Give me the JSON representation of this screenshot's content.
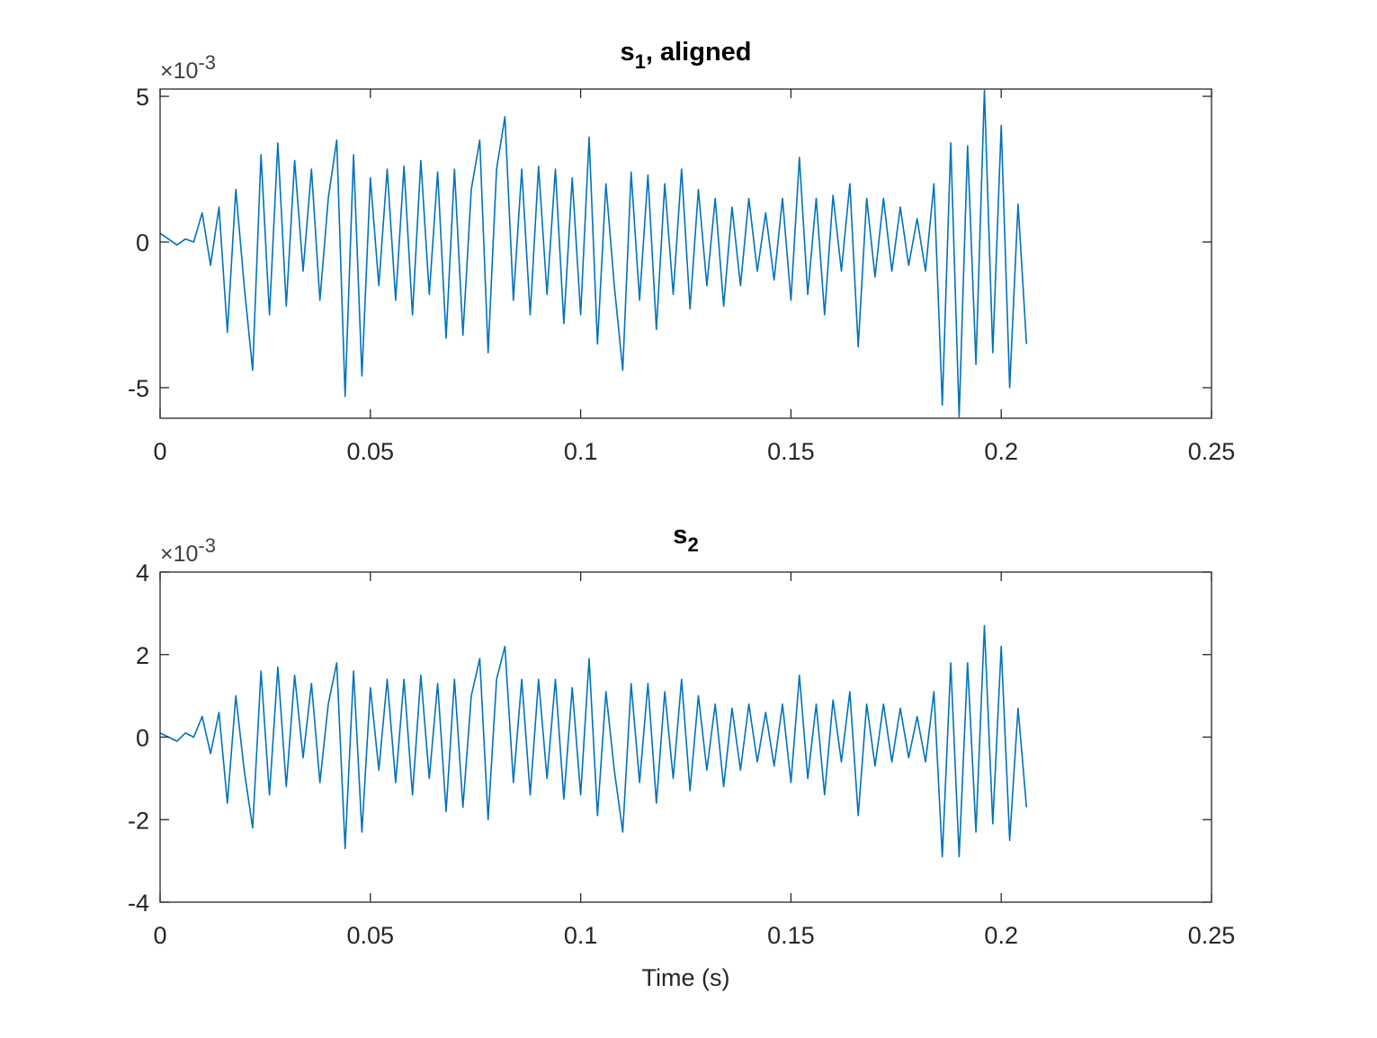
{
  "chart_data": [
    {
      "type": "line",
      "title": {
        "text": "s",
        "subscript": "1",
        "rest": ", aligned"
      },
      "y_multiplier": {
        "base": "×10",
        "exponent": "-3"
      },
      "color": "#0072bd",
      "xlim": [
        0,
        0.25
      ],
      "xticks": [
        0,
        0.05,
        0.1,
        0.15,
        0.2,
        0.25
      ],
      "ylim": [
        -6.05,
        5.25
      ],
      "yticks": [
        -5,
        0,
        5
      ],
      "x": [
        0,
        0.002,
        0.004,
        0.006,
        0.008,
        0.01,
        0.012,
        0.014,
        0.016,
        0.018,
        0.02,
        0.022,
        0.024,
        0.026,
        0.028,
        0.03,
        0.032,
        0.034,
        0.036,
        0.038,
        0.04,
        0.042,
        0.044,
        0.046,
        0.048,
        0.05,
        0.052,
        0.054,
        0.056,
        0.058,
        0.06,
        0.062,
        0.064,
        0.066,
        0.068,
        0.07,
        0.072,
        0.074,
        0.076,
        0.078,
        0.08,
        0.082,
        0.084,
        0.086,
        0.088,
        0.09,
        0.092,
        0.094,
        0.096,
        0.098,
        0.1,
        0.102,
        0.104,
        0.106,
        0.108,
        0.11,
        0.112,
        0.114,
        0.116,
        0.118,
        0.12,
        0.122,
        0.124,
        0.126,
        0.128,
        0.13,
        0.132,
        0.134,
        0.136,
        0.138,
        0.14,
        0.142,
        0.144,
        0.146,
        0.148,
        0.15,
        0.152,
        0.154,
        0.156,
        0.158,
        0.16,
        0.162,
        0.164,
        0.166,
        0.168,
        0.17,
        0.172,
        0.174,
        0.176,
        0.178,
        0.18,
        0.182,
        0.184,
        0.186,
        0.188,
        0.19,
        0.192,
        0.194,
        0.196,
        0.198,
        0.2,
        0.202,
        0.204,
        0.206
      ],
      "values": [
        0.3,
        0.1,
        -0.1,
        0.1,
        0.0,
        1.0,
        -0.8,
        1.2,
        -3.1,
        1.8,
        -1.5,
        -4.4,
        3.0,
        -2.5,
        3.4,
        -2.2,
        2.8,
        -1.0,
        2.5,
        -2.0,
        1.5,
        3.5,
        -5.3,
        3.0,
        -4.6,
        2.2,
        -1.5,
        2.5,
        -2.0,
        2.6,
        -2.5,
        2.8,
        -1.8,
        2.4,
        -3.3,
        2.5,
        -3.2,
        1.8,
        3.5,
        -3.8,
        2.5,
        4.3,
        -2.0,
        2.5,
        -2.5,
        2.6,
        -1.8,
        2.5,
        -2.8,
        2.2,
        -2.5,
        3.6,
        -3.5,
        2.0,
        -1.5,
        -4.4,
        2.4,
        -2.0,
        2.3,
        -3.0,
        2.0,
        -1.8,
        2.5,
        -2.3,
        1.8,
        -1.5,
        1.5,
        -2.2,
        1.2,
        -1.5,
        1.5,
        -1.0,
        1.0,
        -1.3,
        1.5,
        -2.0,
        2.9,
        -1.8,
        1.5,
        -2.5,
        1.6,
        -1.0,
        2.0,
        -3.6,
        1.5,
        -1.2,
        1.5,
        -1.0,
        1.2,
        -0.8,
        0.8,
        -1.0,
        2.0,
        -5.6,
        3.4,
        -6.0,
        3.3,
        -4.2,
        5.2,
        -3.8,
        4.0,
        -5.0,
        1.3,
        -3.5
      ]
    },
    {
      "type": "line",
      "title": {
        "text": "s",
        "subscript": "2"
      },
      "y_multiplier": {
        "base": "×10",
        "exponent": "-3"
      },
      "x_label": "Time (s)",
      "color": "#0072bd",
      "xlim": [
        0,
        0.25
      ],
      "xticks": [
        0,
        0.05,
        0.1,
        0.15,
        0.2,
        0.25
      ],
      "ylim": [
        -4,
        4
      ],
      "yticks": [
        -4,
        -2,
        0,
        2,
        4
      ],
      "x": [
        0,
        0.002,
        0.004,
        0.006,
        0.008,
        0.01,
        0.012,
        0.014,
        0.016,
        0.018,
        0.02,
        0.022,
        0.024,
        0.026,
        0.028,
        0.03,
        0.032,
        0.034,
        0.036,
        0.038,
        0.04,
        0.042,
        0.044,
        0.046,
        0.048,
        0.05,
        0.052,
        0.054,
        0.056,
        0.058,
        0.06,
        0.062,
        0.064,
        0.066,
        0.068,
        0.07,
        0.072,
        0.074,
        0.076,
        0.078,
        0.08,
        0.082,
        0.084,
        0.086,
        0.088,
        0.09,
        0.092,
        0.094,
        0.096,
        0.098,
        0.1,
        0.102,
        0.104,
        0.106,
        0.108,
        0.11,
        0.112,
        0.114,
        0.116,
        0.118,
        0.12,
        0.122,
        0.124,
        0.126,
        0.128,
        0.13,
        0.132,
        0.134,
        0.136,
        0.138,
        0.14,
        0.142,
        0.144,
        0.146,
        0.148,
        0.15,
        0.152,
        0.154,
        0.156,
        0.158,
        0.16,
        0.162,
        0.164,
        0.166,
        0.168,
        0.17,
        0.172,
        0.174,
        0.176,
        0.178,
        0.18,
        0.182,
        0.184,
        0.186,
        0.188,
        0.19,
        0.192,
        0.194,
        0.196,
        0.198,
        0.2,
        0.202,
        0.204,
        0.206
      ],
      "values": [
        0.1,
        0.0,
        -0.1,
        0.1,
        0.0,
        0.5,
        -0.4,
        0.6,
        -1.6,
        1.0,
        -0.8,
        -2.2,
        1.6,
        -1.4,
        1.7,
        -1.2,
        1.5,
        -0.5,
        1.3,
        -1.1,
        0.8,
        1.8,
        -2.7,
        1.6,
        -2.3,
        1.2,
        -0.8,
        1.4,
        -1.1,
        1.4,
        -1.4,
        1.5,
        -1.0,
        1.3,
        -1.8,
        1.4,
        -1.7,
        1.0,
        1.9,
        -2.0,
        1.4,
        2.2,
        -1.1,
        1.4,
        -1.4,
        1.4,
        -1.0,
        1.4,
        -1.5,
        1.2,
        -1.4,
        1.9,
        -1.9,
        1.1,
        -0.8,
        -2.3,
        1.3,
        -1.1,
        1.3,
        -1.6,
        1.1,
        -1.0,
        1.4,
        -1.3,
        1.0,
        -0.8,
        0.8,
        -1.2,
        0.7,
        -0.8,
        0.8,
        -0.6,
        0.6,
        -0.7,
        0.8,
        -1.1,
        1.5,
        -1.0,
        0.8,
        -1.4,
        0.9,
        -0.6,
        1.1,
        -1.9,
        0.8,
        -0.7,
        0.8,
        -0.6,
        0.7,
        -0.5,
        0.5,
        -0.6,
        1.1,
        -2.9,
        1.8,
        -2.9,
        1.8,
        -2.3,
        2.7,
        -2.1,
        2.2,
        -2.5,
        0.7,
        -1.7
      ]
    }
  ]
}
